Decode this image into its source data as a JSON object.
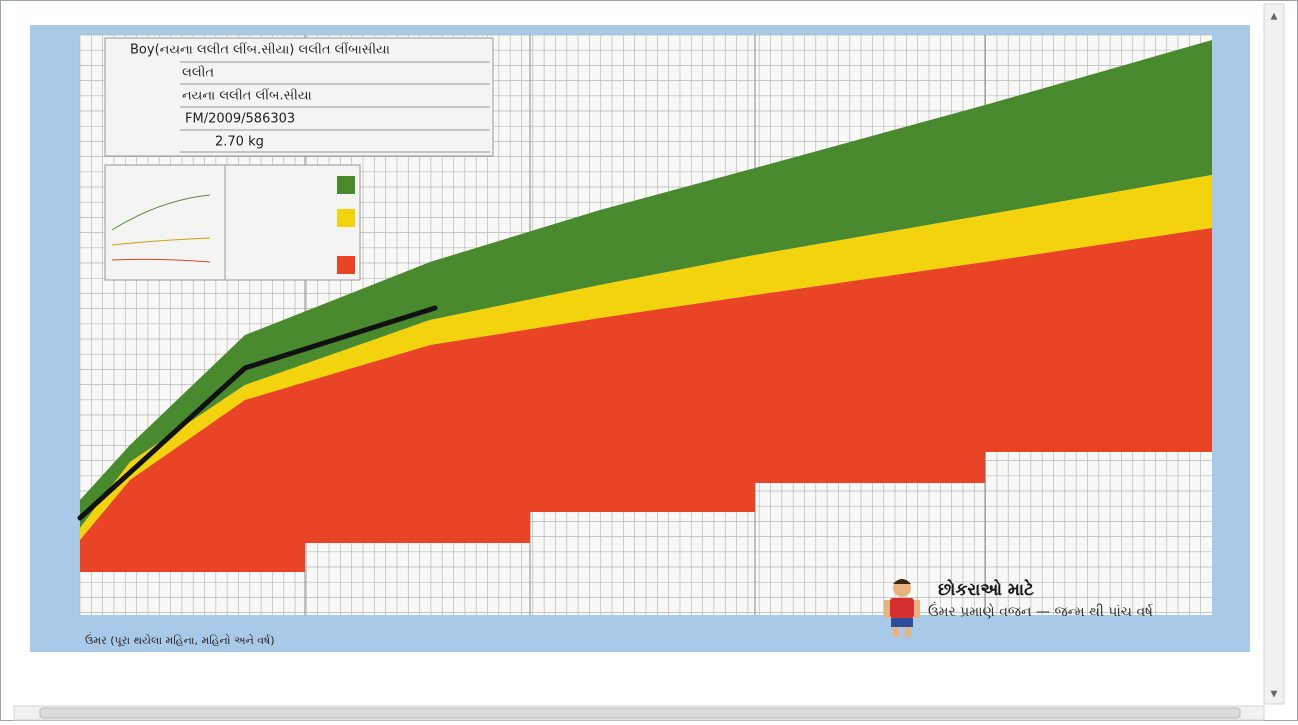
{
  "info": {
    "name": "Boy(નયના લલીત લીંબ.સીયા) લલીત લીંબાસીયા",
    "father": "લલીત",
    "mother": "નયના લલીત લીંબ.સીયા",
    "registration": "FM/2009/586303",
    "birth_weight": "2.70 kg"
  },
  "footer": {
    "title": "છોકરાઓ માટે",
    "subtitle": "ઉંમર પ્રમાણે વજન — જન્મ થી પાંચ વર્ષ",
    "x_axis_label": "ઉંમર (પૂરા થયેલા મહિના, મહિનો અને વર્ષ)"
  }
}
